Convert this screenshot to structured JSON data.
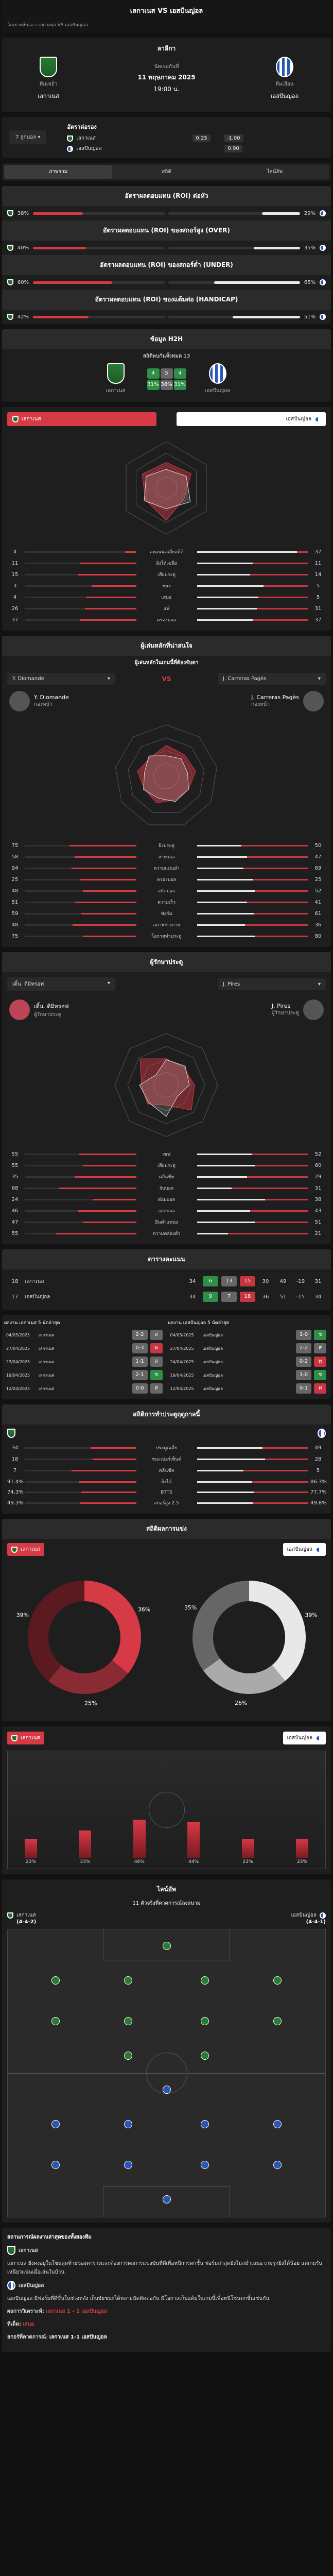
{
  "header": {
    "title": "เลกาเนส VS เอสปันญ่อล",
    "breadcrumb_home": "วิเคราะห์บอล",
    "breadcrumb_current": "เลกาเนส VS เอสปันญ่อล"
  },
  "match": {
    "league": "ลาลีกา",
    "round": "นัดเจอกันที่",
    "date": "11 พฤษภาคม 2025",
    "time": "19:00 น.",
    "home": "เลกาเนส",
    "away": "เอสปันญ่อล",
    "home_badge": "ทีมเหย้า",
    "away_badge": "ทีมเยือน"
  },
  "odds": {
    "title": "อัตราต่อรอง",
    "filter": "7 ลูกบอล",
    "rows": [
      {
        "team": "เลกาเนส",
        "val": "0.25",
        "odd": "-1.00"
      },
      {
        "team": "เอสปันญ่อล",
        "val": "",
        "odd": "0.90"
      }
    ]
  },
  "tabs": [
    "ภาพรวม",
    "สถิติ",
    "ไลน์อัพ"
  ],
  "roi_sections": [
    {
      "title": "อัตราผลตอบแทน (ROI) ต่อหัว",
      "home": "38%",
      "away": "29%",
      "h": 38,
      "a": 29
    },
    {
      "title": "อัตราผลตอบแทน (ROI) ของสกอร์สูง (OVER)",
      "home": "40%",
      "away": "35%",
      "h": 40,
      "a": 35
    },
    {
      "title": "อัตราผลตอบแทน (ROI) ของสกอร์ต่ำ (UNDER)",
      "home": "60%",
      "away": "65%",
      "h": 60,
      "a": 65
    },
    {
      "title": "อัตราผลตอบแทน (ROI) ของแต้มต่อ (HANDICAP)",
      "home": "42%",
      "away": "51%",
      "h": 42,
      "a": 51
    }
  ],
  "h2h_summary": {
    "title": "ข้อมูล H2H",
    "subtitle": "สถิติพบกันทั้งหมด 13",
    "home_win": "4",
    "draw": "5",
    "away_win": "4",
    "pct": [
      "31%",
      "38%",
      "31%"
    ]
  },
  "team_compare": {
    "home": "เลกาเนส",
    "away": "เอสปันญ่อล",
    "radar_vals": [
      0.55,
      0.62,
      0.45,
      0.7,
      0.52,
      0.6
    ],
    "stats": [
      {
        "label": "คะแนนเฉลี่ยสถิติ",
        "h": "4",
        "a": "37",
        "hp": 10,
        "ap": 90
      },
      {
        "label": "ยิงได้เฉลี่ย",
        "h": "11",
        "a": "11",
        "hp": 50,
        "ap": 50
      },
      {
        "label": "เสียประตู",
        "h": "15",
        "a": "14",
        "hp": 52,
        "ap": 48
      },
      {
        "label": "ชนะ",
        "h": "3",
        "a": "5",
        "hp": 40,
        "ap": 60
      },
      {
        "label": "เสมอ",
        "h": "4",
        "a": "5",
        "hp": 45,
        "ap": 55
      },
      {
        "label": "แพ้",
        "h": "26",
        "a": "31",
        "hp": 46,
        "ap": 54
      },
      {
        "label": "ครองบอล",
        "h": "37",
        "a": "37",
        "hp": 50,
        "ap": 50
      }
    ]
  },
  "key_players": {
    "title": "ผู้เล่นหลักที่น่าสนใจ",
    "subtitle": "ผู้เล่นหลักในเกมนี้ที่ต้องจับตา",
    "left_sel": "Y. Diomande",
    "right_sel": "J. Carreras Pagès",
    "vs": "VS",
    "left": {
      "name": "Y. Diomande",
      "pos": "กองหน้า"
    },
    "right": {
      "name": "J. Carreras Pagès",
      "pos": "กองหน้า"
    },
    "stats": [
      {
        "label": "ยิงประตู",
        "h": "75",
        "a": "50",
        "hp": 60,
        "ap": 40
      },
      {
        "label": "จ่ายบอล",
        "h": "58",
        "a": "47",
        "hp": 55,
        "ap": 45
      },
      {
        "label": "ความแม่นยำ",
        "h": "94",
        "a": "69",
        "hp": 58,
        "ap": 42
      },
      {
        "label": "ครองบอล",
        "h": "25",
        "a": "25",
        "hp": 50,
        "ap": 50
      },
      {
        "label": "สกัดบอล",
        "h": "48",
        "a": "52",
        "hp": 48,
        "ap": 52
      },
      {
        "label": "ความเร็ว",
        "h": "51",
        "a": "41",
        "hp": 55,
        "ap": 45
      },
      {
        "label": "ฟอร์ม",
        "h": "59",
        "a": "61",
        "hp": 49,
        "ap": 51
      },
      {
        "label": "สภาพร่างกาย",
        "h": "48",
        "a": "36",
        "hp": 57,
        "ap": 43
      },
      {
        "label": "โอกาสทำประตู",
        "h": "75",
        "a": "80",
        "hp": 48,
        "ap": 52
      }
    ]
  },
  "goalkeepers": {
    "title": "ผู้รักษาประตู",
    "left_sel": "เดิ้น. ดิมิทรอฟ",
    "right_sel": "J. Pires",
    "left": {
      "name": "เดิ้น. ดิมิทรอฟ",
      "pos": "ผู้รักษาประตู"
    },
    "right": {
      "name": "J. Pires",
      "pos": "ผู้รักษาประตู"
    },
    "stats": [
      {
        "label": "เซฟ",
        "h": "55",
        "a": "52",
        "hp": 51,
        "ap": 49
      },
      {
        "label": "เสียประตู",
        "h": "55",
        "a": "60",
        "hp": 48,
        "ap": 52
      },
      {
        "label": "คลีนชีท",
        "h": "35",
        "a": "29",
        "hp": 55,
        "ap": 45
      },
      {
        "label": "จับบอล",
        "h": "68",
        "a": "31",
        "hp": 69,
        "ap": 31
      },
      {
        "label": "ต่อยบอล",
        "h": "24",
        "a": "38",
        "hp": 39,
        "ap": 61
      },
      {
        "label": "ออกบอล",
        "h": "46",
        "a": "43",
        "hp": 52,
        "ap": 48
      },
      {
        "label": "ยืนตำแหน่ง",
        "h": "47",
        "a": "51",
        "hp": 48,
        "ap": 52
      },
      {
        "label": "ความคล่องตัว",
        "h": "55",
        "a": "21",
        "hp": 72,
        "ap": 28
      }
    ]
  },
  "standings": {
    "title": "ตารางคะแนน",
    "cols": [
      "#",
      "ทีม",
      "นัด",
      "ช",
      "ส",
      "พ",
      "ได้",
      "เสีย",
      "+/-",
      "แต้ม"
    ],
    "rows": [
      {
        "pos": "18",
        "team": "เลกาเนส",
        "p": "34",
        "w": "6",
        "d": "13",
        "l": "15",
        "gf": "30",
        "ga": "49",
        "gd": "-19",
        "pts": "31"
      },
      {
        "pos": "17",
        "team": "เอสปันญ่อล",
        "p": "34",
        "w": "9",
        "d": "7",
        "l": "18",
        "gf": "36",
        "ga": "51",
        "gd": "-15",
        "pts": "34"
      }
    ]
  },
  "last5": {
    "home_title": "ผลงาน เลกาเนส 5 นัดล่าสุด",
    "away_title": "ผลงาน เอสปันญ่อล 5 นัดล่าสุด",
    "home": [
      [
        "04/05/2025",
        "เลกาเนส",
        "2-2",
        "ส"
      ],
      [
        "27/04/2025",
        "เลกาเนส",
        "0-3",
        "พ"
      ],
      [
        "23/04/2025",
        "เลกาเนส",
        "1-1",
        "ส"
      ],
      [
        "19/04/2025",
        "เลกาเนส",
        "2-1",
        "ช"
      ],
      [
        "12/04/2025",
        "เลกาเนส",
        "0-0",
        "ส"
      ]
    ],
    "away": [
      [
        "04/05/2025",
        "เอสปันญ่อล",
        "1-0",
        "ช"
      ],
      [
        "27/04/2025",
        "เอสปันญ่อล",
        "2-2",
        "ส"
      ],
      [
        "24/04/2025",
        "เอสปันญ่อล",
        "0-2",
        "พ"
      ],
      [
        "19/04/2025",
        "เอสปันญ่อล",
        "1-0",
        "ช"
      ],
      [
        "12/04/2025",
        "เอสปันญ่อล",
        "0-1",
        "พ"
      ]
    ]
  },
  "season_stats": {
    "title": "สถิติการทำประตูฤดูกาลนี้",
    "rows": [
      {
        "label": "ประตูเฉลี่ย",
        "h": "34",
        "a": "49",
        "hp": 41,
        "ap": 59
      },
      {
        "label": "ชนะเปอร์เซ็นต์",
        "h": "18",
        "a": "28",
        "hp": 39,
        "ap": 61
      },
      {
        "label": "คลีนชีท",
        "h": "7",
        "a": "5",
        "hp": 58,
        "ap": 42
      },
      {
        "label": "ยิงได้",
        "h": "91.4%",
        "a": "86.3%",
        "hp": 51,
        "ap": 49
      },
      {
        "label": "BTTS",
        "h": "74.3%",
        "a": "77.7%",
        "hp": 49,
        "ap": 51
      },
      {
        "label": "สกอร์สูง 2.5",
        "h": "49.3%",
        "a": "49.8%",
        "hp": 50,
        "ap": 50
      }
    ]
  },
  "results_pie": {
    "title": "สถิติผลการแข่ง",
    "home_team": "เลกาเนส",
    "away_team": "เอสปันญ่อล",
    "home": [
      "36%",
      "25%",
      "39%"
    ],
    "away": [
      "39%",
      "26%",
      "35%"
    ]
  },
  "goal_time": {
    "home_team": "เลกาเนส",
    "away_team": "เอสปันญ่อล",
    "home_bars": [
      23,
      33,
      46,
      44,
      23,
      23
    ],
    "home_labels": [
      "23%",
      "33%",
      "46%",
      "44%",
      "23%",
      "23%"
    ]
  },
  "lineup": {
    "title": "ไลน์อัพ",
    "subtitle": "11 ตัวจริงที่คาดการณ์ลงสนาม",
    "home": "เลกาเนส",
    "home_form": "(4-4-2)",
    "away": "เอสปันญ่อล",
    "away_form": "(4-4-1)"
  },
  "analysis": {
    "title": "สถานการณ์ผลงานล่าสุดของทั้งสองทีม",
    "home_team": "เลกาเนส",
    "home_text": "เลกาเนส ยังคงอยู่ในโซนสุดท้ายของตารางและต้องการผลการแข่งขันที่ดีเพื่อหนีการตกชั้น ฟอร์มล่าสุดยังไม่สม่ำเสมอ เกมรุกยิงได้น้อย แต่เกมรับเหนียวแน่นเมื่อเล่นในบ้าน",
    "away_team": "เอสปันญ่อล",
    "away_text": "เอสปันญ่อล มีฟอร์มที่ดีขึ้นในช่วงหลัง เก็บชัยชนะได้หลายนัดติดต่อกัน มีโอกาสเก็บแต้มในเกมนี้เพื่อหนีโซนตกชั้นเช่นกัน",
    "pred_label": "ผลการวิเคราะห์:",
    "pred": "เลกาเนส 1 - 1 เอสปันญ่อล",
    "tip_label": "ทีเด็ด:",
    "tip": "เสมอ",
    "final_label": "สกอร์ที่คาดการณ์",
    "final": "เลกาเนส 1-1 เอสปันญ่อล"
  }
}
